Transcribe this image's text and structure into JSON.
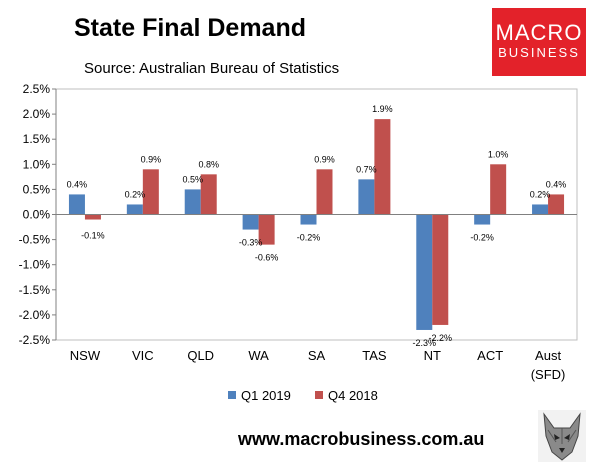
{
  "header": {
    "title": "State Final Demand",
    "source": "Source: Australian Bureau of Statistics"
  },
  "logo": {
    "line1": "MACRO",
    "line2": "BUSINESS",
    "color": "#e3222a"
  },
  "footer": {
    "website": "www.macrobusiness.com.au",
    "emblem_icon": "wolf-head-icon"
  },
  "chart_data": {
    "type": "bar",
    "categories": [
      "NSW",
      "VIC",
      "QLD",
      "WA",
      "SA",
      "TAS",
      "NT",
      "ACT",
      "Aust\n(SFD)"
    ],
    "series": [
      {
        "name": "Q1 2019",
        "color": "#4f81bd",
        "values": [
          0.4,
          0.2,
          0.5,
          -0.3,
          -0.2,
          0.7,
          -2.3,
          -0.2,
          0.2
        ],
        "labels": [
          "0.4%",
          "0.2%",
          "0.5%",
          "-0.3%",
          "-0.2%",
          "0.7%",
          "-2.3%",
          "-0.2%",
          "0.2%"
        ]
      },
      {
        "name": "Q4 2018",
        "color": "#c0504d",
        "values": [
          -0.1,
          0.9,
          0.8,
          -0.6,
          0.9,
          1.9,
          -2.2,
          1.0,
          0.4
        ],
        "labels": [
          "-0.1%",
          "0.9%",
          "0.8%",
          "-0.6%",
          "0.9%",
          "1.9%",
          "-2.2%",
          "1.0%",
          "0.4%"
        ]
      }
    ],
    "ylim": [
      -2.5,
      2.5
    ],
    "yticks": [
      2.5,
      2.0,
      1.5,
      1.0,
      0.5,
      0.0,
      -0.5,
      -1.0,
      -1.5,
      -2.0,
      -2.5
    ],
    "ytick_labels": [
      "2.5%",
      "2.0%",
      "1.5%",
      "1.0%",
      "0.5%",
      "0.0%",
      "-0.5%",
      "-1.0%",
      "-1.5%",
      "-2.0%",
      "-2.5%"
    ],
    "grid": false,
    "legend": "bottom"
  }
}
